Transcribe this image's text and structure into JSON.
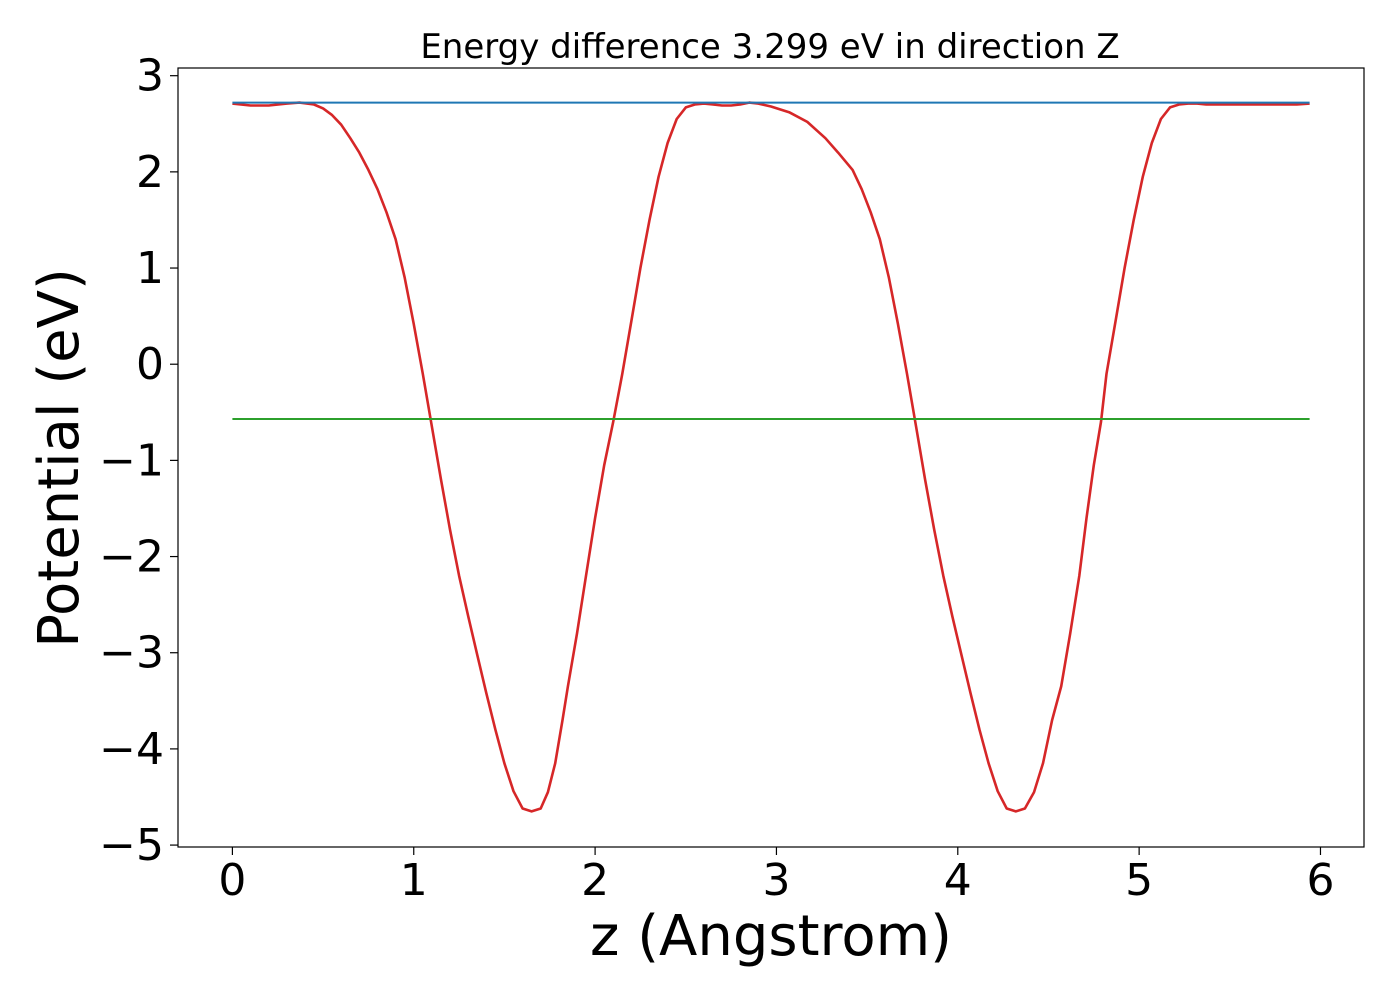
{
  "chart_data": {
    "type": "line",
    "title": "Energy difference 3.299 eV in direction Z",
    "xlabel": "z (Angstrom)",
    "ylabel": "Potential (eV)",
    "xlim": [
      -0.3,
      6.24
    ],
    "ylim": [
      -5.02,
      3.08
    ],
    "xticks": [
      0,
      1,
      2,
      3,
      4,
      5,
      6
    ],
    "xtick_labels": [
      "0",
      "1",
      "2",
      "3",
      "4",
      "5",
      "6"
    ],
    "yticks": [
      -5,
      -4,
      -3,
      -2,
      -1,
      0,
      1,
      2,
      3
    ],
    "ytick_labels": [
      "−5",
      "−4",
      "−3",
      "−2",
      "−1",
      "0",
      "1",
      "2",
      "3"
    ],
    "grid": false,
    "series": [
      {
        "color": "#d62728",
        "x": [
          0,
          0.1,
          0.2,
          0.3,
          0.37,
          0.45,
          0.5,
          0.55,
          0.6,
          0.65,
          0.7,
          0.75,
          0.8,
          0.85,
          0.9,
          0.95,
          1.0,
          1.05,
          1.1,
          1.15,
          1.2,
          1.25,
          1.3,
          1.35,
          1.4,
          1.45,
          1.5,
          1.55,
          1.6,
          1.65,
          1.7,
          1.74,
          1.78,
          1.82,
          1.85,
          1.9,
          1.95,
          2.0,
          2.05,
          2.1,
          2.15,
          2.2,
          2.25,
          2.3,
          2.35,
          2.4,
          2.45,
          2.5,
          2.55,
          2.6,
          2.65,
          2.7,
          2.75,
          2.8,
          2.85,
          2.9,
          2.97,
          3.07,
          3.17,
          3.27,
          3.34,
          3.42,
          3.47,
          3.52,
          3.57,
          3.62,
          3.67,
          3.72,
          3.77,
          3.82,
          3.87,
          3.92,
          3.97,
          4.02,
          4.07,
          4.12,
          4.17,
          4.22,
          4.27,
          4.32,
          4.37,
          4.42,
          4.47,
          4.52,
          4.57,
          4.62,
          4.67,
          4.71,
          4.75,
          4.79,
          4.82,
          4.87,
          4.92,
          4.97,
          5.02,
          5.07,
          5.12,
          5.17,
          5.22,
          5.27,
          5.32,
          5.37,
          5.42,
          5.47,
          5.52,
          5.57,
          5.62,
          5.67,
          5.72,
          5.77,
          5.82,
          5.87,
          5.94
        ],
        "y": [
          2.71,
          2.69,
          2.69,
          2.71,
          2.72,
          2.7,
          2.66,
          2.59,
          2.49,
          2.35,
          2.2,
          2.02,
          1.82,
          1.58,
          1.3,
          0.9,
          0.42,
          -0.1,
          -0.65,
          -1.2,
          -1.72,
          -2.2,
          -2.62,
          -3.02,
          -3.42,
          -3.8,
          -4.15,
          -4.44,
          -4.62,
          -4.65,
          -4.62,
          -4.45,
          -4.15,
          -3.7,
          -3.35,
          -2.8,
          -2.2,
          -1.6,
          -1.05,
          -0.6,
          -0.1,
          0.45,
          1.0,
          1.5,
          1.95,
          2.3,
          2.55,
          2.67,
          2.7,
          2.71,
          2.7,
          2.69,
          2.69,
          2.7,
          2.72,
          2.71,
          2.68,
          2.62,
          2.52,
          2.35,
          2.2,
          2.02,
          1.82,
          1.58,
          1.3,
          0.9,
          0.42,
          -0.1,
          -0.65,
          -1.2,
          -1.72,
          -2.2,
          -2.62,
          -3.02,
          -3.42,
          -3.8,
          -4.15,
          -4.44,
          -4.62,
          -4.65,
          -4.62,
          -4.45,
          -4.15,
          -3.7,
          -3.35,
          -2.8,
          -2.2,
          -1.6,
          -1.05,
          -0.6,
          -0.1,
          0.45,
          1.0,
          1.5,
          1.95,
          2.3,
          2.55,
          2.67,
          2.7,
          2.71,
          2.71,
          2.7,
          2.7,
          2.7,
          2.7,
          2.7,
          2.7,
          2.7,
          2.7,
          2.7,
          2.7,
          2.7,
          2.71
        ]
      },
      {
        "color": "#1f77b4",
        "x": [
          0,
          5.94
        ],
        "y": [
          2.72,
          2.72
        ]
      },
      {
        "color": "#2ca02c",
        "x": [
          0,
          5.94
        ],
        "y": [
          -0.57,
          -0.57
        ]
      }
    ]
  }
}
